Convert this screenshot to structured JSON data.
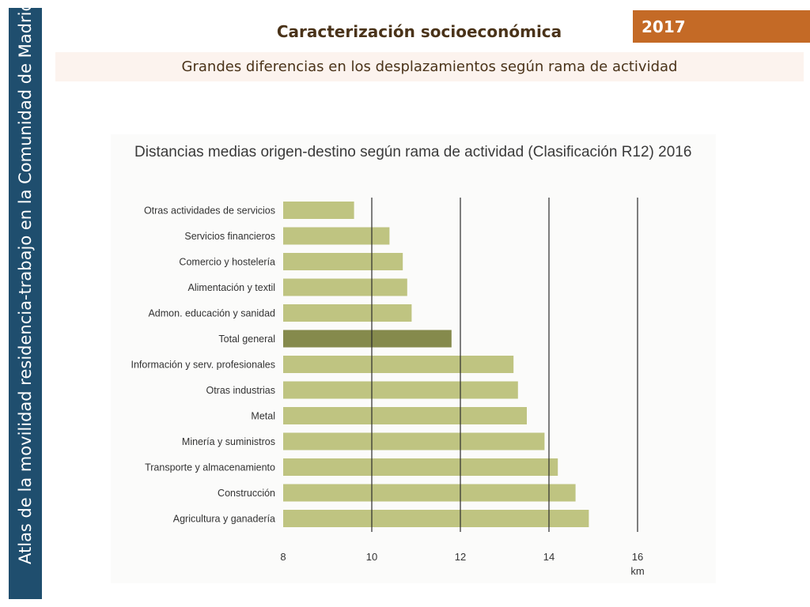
{
  "sidebar": {
    "text": "Atlas de la movilidad residencia-trabajo en la Comunidad de Madrid"
  },
  "header": {
    "title": "Caracterización socioeconómica",
    "year": "2017",
    "subtitle": "Grandes diferencias en los desplazamientos según rama de actividad"
  },
  "colors": {
    "bar": "#bfc481",
    "highlight_bar": "#858a4c",
    "sidebar": "#1f4e6e",
    "badge": "#c46a26"
  },
  "chart_data": {
    "type": "bar",
    "orientation": "horizontal",
    "title": "Distancias medias origen-destino según rama de actividad (Clasificación R12) 2016",
    "xlabel": "km",
    "xlim": [
      8,
      16
    ],
    "xticks": [
      "8",
      "10",
      "12",
      "14",
      "16"
    ],
    "grid": "vertical",
    "highlight": "Total general",
    "categories": [
      "Otras actividades de servicios",
      "Servicios financieros",
      "Comercio y hostelería",
      "Alimentación y textil",
      "Admon. educación y sanidad",
      "Total general",
      "Información y serv. profesionales",
      "Otras industrias",
      "Metal",
      "Minería y suministros",
      "Transporte y almacenamiento",
      "Construcción",
      "Agricultura y ganadería"
    ],
    "values": [
      9.6,
      10.4,
      10.7,
      10.8,
      10.9,
      11.8,
      13.2,
      13.3,
      13.5,
      13.9,
      14.2,
      14.6,
      14.9
    ]
  }
}
